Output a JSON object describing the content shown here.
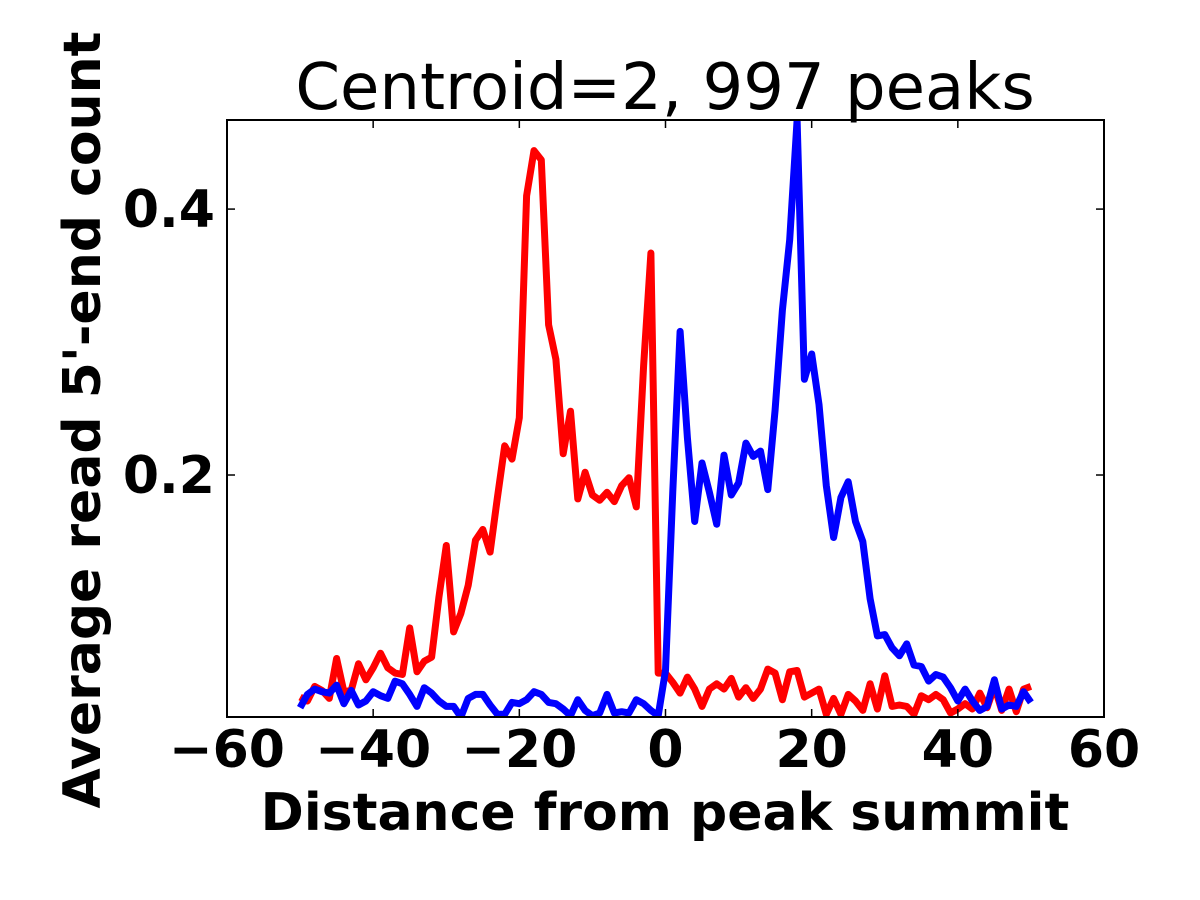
{
  "chart_data": {
    "type": "line",
    "title": "Centroid=2, 997 peaks",
    "xlabel": "Distance from peak summit",
    "ylabel": "Average read 5'-end count",
    "xlim": [
      -60,
      60
    ],
    "ylim": [
      0.018,
      0.467
    ],
    "xticks": [
      -60,
      -40,
      -20,
      0,
      20,
      40,
      60
    ],
    "xtick_labels": [
      "−60",
      "−40",
      "−20",
      "0",
      "20",
      "40",
      "60"
    ],
    "yticks": [
      0.2,
      0.4
    ],
    "ytick_labels": [
      "0.2",
      "0.4"
    ],
    "grid": false,
    "legend": "none",
    "x": [
      -50,
      -49,
      -48,
      -47,
      -46,
      -45,
      -44,
      -43,
      -42,
      -41,
      -40,
      -39,
      -38,
      -37,
      -36,
      -35,
      -34,
      -33,
      -32,
      -31,
      -30,
      -29,
      -28,
      -27,
      -26,
      -25,
      -24,
      -23,
      -22,
      -21,
      -20,
      -19,
      -18,
      -17,
      -16,
      -15,
      -14,
      -13,
      -12,
      -11,
      -10,
      -9,
      -8,
      -7,
      -6,
      -5,
      -4,
      -3,
      -2,
      -1,
      0,
      1,
      2,
      3,
      4,
      5,
      6,
      7,
      8,
      9,
      10,
      11,
      12,
      13,
      14,
      15,
      16,
      17,
      18,
      19,
      20,
      21,
      22,
      23,
      24,
      25,
      26,
      27,
      28,
      29,
      30,
      31,
      32,
      33,
      34,
      35,
      36,
      37,
      38,
      39,
      40,
      41,
      42,
      43,
      44,
      45,
      46,
      47,
      48,
      49,
      50
    ],
    "series": [
      {
        "color": "#ff0000",
        "values": [
          0.033,
          0.03,
          0.041,
          0.038,
          0.032,
          0.062,
          0.037,
          0.038,
          0.058,
          0.046,
          0.055,
          0.066,
          0.055,
          0.051,
          0.05,
          0.085,
          0.052,
          0.06,
          0.063,
          0.108,
          0.147,
          0.082,
          0.096,
          0.117,
          0.151,
          0.159,
          0.142,
          0.183,
          0.222,
          0.212,
          0.243,
          0.41,
          0.444,
          0.437,
          0.313,
          0.287,
          0.216,
          0.248,
          0.182,
          0.202,
          0.185,
          0.181,
          0.187,
          0.18,
          0.192,
          0.198,
          0.176,
          0.282,
          0.367,
          0.051,
          0.051,
          0.044,
          0.036,
          0.048,
          0.039,
          0.026,
          0.039,
          0.043,
          0.039,
          0.047,
          0.033,
          0.04,
          0.032,
          0.039,
          0.054,
          0.051,
          0.031,
          0.052,
          0.053,
          0.033,
          0.036,
          0.039,
          0.02,
          0.032,
          0.02,
          0.035,
          0.03,
          0.023,
          0.043,
          0.024,
          0.049,
          0.026,
          0.027,
          0.026,
          0.02,
          0.034,
          0.031,
          0.035,
          0.031,
          0.021,
          0.024,
          0.028,
          0.024,
          0.036,
          0.025,
          0.041,
          0.023,
          0.039,
          0.022,
          0.039,
          0.041
        ]
      },
      {
        "color": "#0000ff",
        "values": [
          0.025,
          0.035,
          0.039,
          0.037,
          0.036,
          0.042,
          0.028,
          0.038,
          0.027,
          0.03,
          0.037,
          0.034,
          0.032,
          0.045,
          0.043,
          0.035,
          0.026,
          0.04,
          0.036,
          0.03,
          0.026,
          0.026,
          0.018,
          0.032,
          0.035,
          0.035,
          0.027,
          0.02,
          0.02,
          0.029,
          0.028,
          0.031,
          0.037,
          0.035,
          0.029,
          0.028,
          0.024,
          0.019,
          0.031,
          0.023,
          0.019,
          0.021,
          0.035,
          0.021,
          0.022,
          0.021,
          0.031,
          0.028,
          0.023,
          0.019,
          0.053,
          0.188,
          0.308,
          0.228,
          0.165,
          0.209,
          0.187,
          0.163,
          0.215,
          0.185,
          0.194,
          0.224,
          0.214,
          0.218,
          0.189,
          0.249,
          0.324,
          0.377,
          0.467,
          0.272,
          0.291,
          0.253,
          0.192,
          0.153,
          0.183,
          0.195,
          0.165,
          0.15,
          0.107,
          0.079,
          0.08,
          0.07,
          0.064,
          0.073,
          0.057,
          0.056,
          0.045,
          0.05,
          0.048,
          0.04,
          0.03,
          0.039,
          0.03,
          0.023,
          0.026,
          0.046,
          0.024,
          0.027,
          0.026,
          0.037,
          0.029
        ]
      }
    ]
  }
}
